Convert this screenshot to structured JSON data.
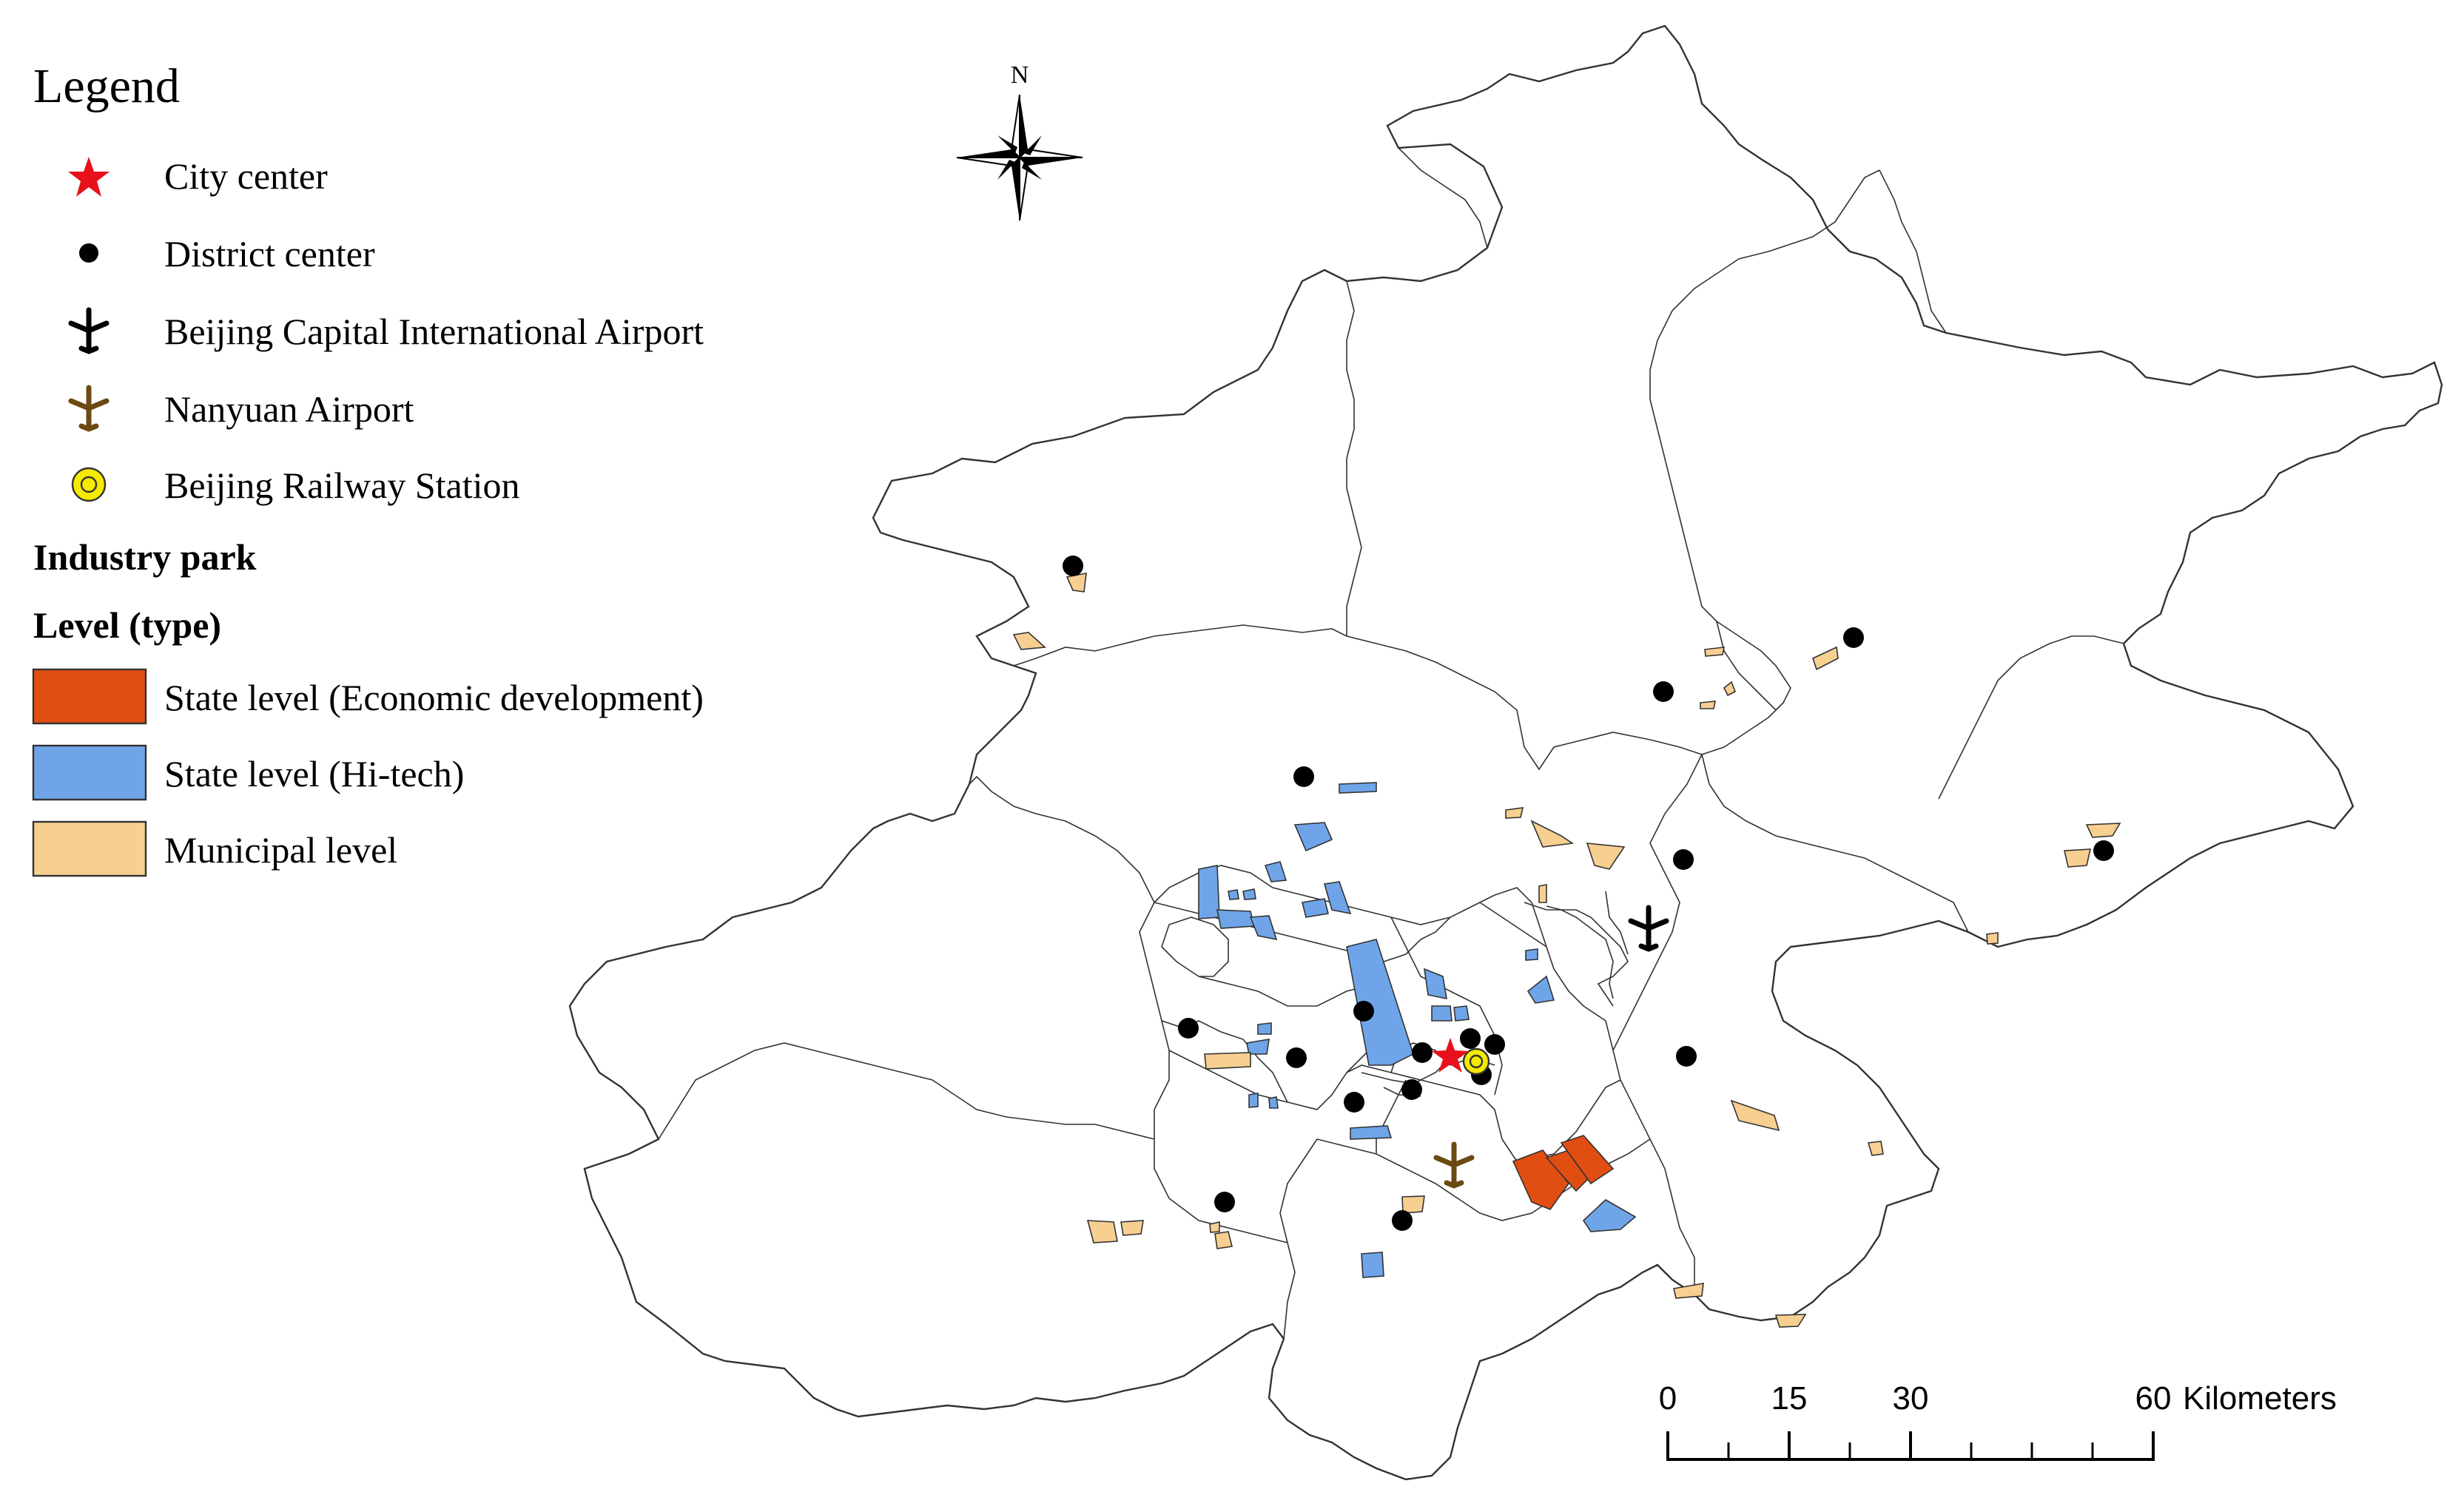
{
  "colors": {
    "city_center": "#e8101a",
    "district_center": "#000000",
    "capital_airport": "#000000",
    "nanyuan_airport": "#6b4a12",
    "railway_station": "#f5ea00",
    "state_econ": "#e14e12",
    "state_hitech": "#6fa5e8",
    "municipal": "#f7cf91",
    "boundary": "#333333"
  },
  "legend": {
    "title": "Legend",
    "items": [
      {
        "label": "City center",
        "icon": "star-icon"
      },
      {
        "label": "District center",
        "icon": "dot-icon"
      },
      {
        "label": "Beijing Capital International Airport",
        "icon": "airplane-icon"
      },
      {
        "label": "Nanyuan Airport",
        "icon": "airplane-icon"
      },
      {
        "label": "Beijing Railway Station",
        "icon": "target-ring-icon"
      }
    ],
    "section_title": "Industry park",
    "section_subtitle": "Level (type)",
    "swatches": [
      {
        "label": "State level (Economic development)",
        "color": "#e14e12"
      },
      {
        "label": "State level (Hi-tech)",
        "color": "#6fa5e8"
      },
      {
        "label": "Municipal level",
        "color": "#f7cf91"
      }
    ]
  },
  "north_arrow": {
    "label": "N",
    "icon": "compass-rose-icon"
  },
  "scale_bar": {
    "ticks": [
      "0",
      "15",
      "30",
      "60"
    ],
    "unit": "Kilometers"
  }
}
